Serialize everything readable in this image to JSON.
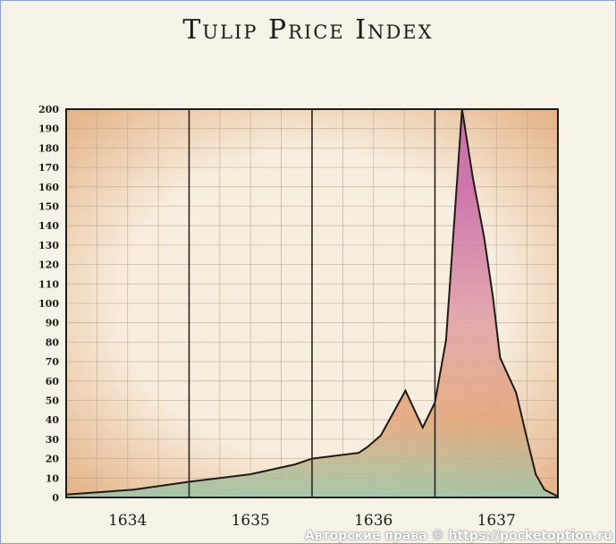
{
  "chart_data": {
    "type": "area",
    "title": "Tulip Price Index",
    "xlabel": "",
    "ylabel": "",
    "ylim": [
      0,
      200
    ],
    "xlim": [
      1634,
      1638
    ],
    "yticks": [
      0,
      10,
      20,
      30,
      40,
      50,
      60,
      70,
      80,
      90,
      100,
      110,
      120,
      130,
      140,
      150,
      160,
      170,
      180,
      190,
      200
    ],
    "xtick_labels": [
      "1634",
      "1635",
      "1636",
      "1637"
    ],
    "grid": true,
    "x": [
      1634.0,
      1634.55,
      1634.99,
      1635.5,
      1635.86,
      1636.0,
      1636.38,
      1636.45,
      1636.56,
      1636.76,
      1636.9,
      1637.0,
      1637.09,
      1637.22,
      1637.31,
      1637.4,
      1637.47,
      1637.53,
      1637.66,
      1637.75,
      1637.82,
      1637.89,
      1638.0
    ],
    "values": [
      1.5,
      4,
      8,
      12,
      17,
      20,
      23,
      26,
      32,
      55,
      36,
      49,
      81,
      200,
      164,
      134,
      104,
      72,
      54,
      30,
      12,
      4,
      0.5
    ],
    "colors": {
      "line": "#1e1a16",
      "fill_low": "#9fc6a8",
      "fill_mid": "#e3a77a",
      "fill_peak": "#c86aa8",
      "paper": "#f7ead6",
      "edge": "#d9955c"
    }
  },
  "watermark": "Авторские права © https://pocketoption.ru"
}
